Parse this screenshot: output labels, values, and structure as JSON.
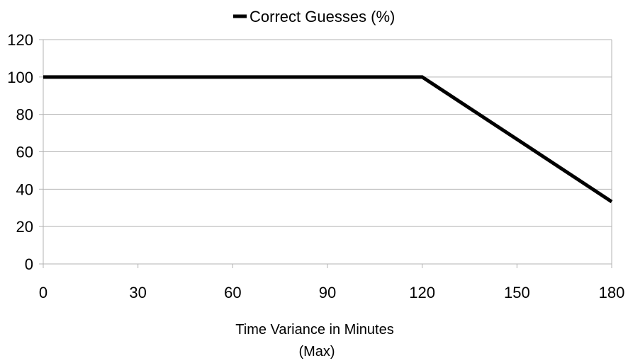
{
  "chart_data": {
    "type": "line",
    "title": "",
    "xlabel": "Time Variance in Minutes",
    "xlabel_sub": "(Max)",
    "ylabel": "",
    "xlim": [
      0,
      180
    ],
    "ylim": [
      0,
      120
    ],
    "xticks": [
      0,
      30,
      60,
      90,
      120,
      150,
      180
    ],
    "yticks": [
      0,
      20,
      40,
      60,
      80,
      100,
      120
    ],
    "grid": "horizontal",
    "legend_position": "top-center",
    "series": [
      {
        "name": "Correct Guesses (%)",
        "color": "#000000",
        "x": [
          0,
          30,
          60,
          90,
          120,
          150,
          180
        ],
        "y": [
          100,
          100,
          100,
          100,
          100,
          66.7,
          33.3
        ]
      }
    ]
  }
}
